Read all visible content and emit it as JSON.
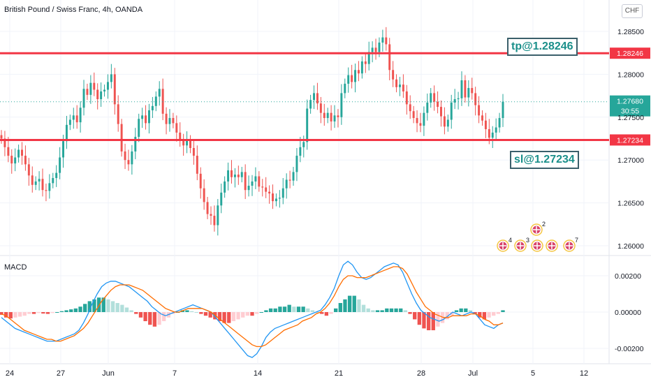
{
  "header": {
    "title": "British Pound / Swiss Franc, 4h, OANDA",
    "currency_button": "CHF"
  },
  "indicator": {
    "name": "MACD"
  },
  "annotations": {
    "tp_label": "tp@1.28246",
    "sl_label": "sl@1.27234"
  },
  "price_tags": {
    "tp": "1.28246",
    "sl": "1.27234",
    "last_price": "1.27680",
    "countdown": "30:55"
  },
  "event_markers": [
    {
      "label": "4"
    },
    {
      "label": "3"
    },
    {
      "label": "2"
    },
    {
      "label": ""
    },
    {
      "label": ""
    },
    {
      "label": "7"
    }
  ],
  "colors": {
    "up": "#26a69a",
    "down": "#ef5350",
    "level_line": "#f23645",
    "macd_line": "#2196f3",
    "signal_line": "#ff6d00",
    "hist_up_strong": "#26a69a",
    "hist_up_weak": "#b2dfdb",
    "hist_down_strong": "#ef5350",
    "hist_down_weak": "#ffcdd2",
    "note_text": "#1a8f8a",
    "note_border": "#3b5f6b"
  },
  "chart_data": [
    {
      "type": "candlestick",
      "title": "British Pound / Swiss Franc, 4h, OANDA",
      "x_ticks": [
        "24",
        "27",
        "Jun",
        "7",
        "14",
        "21",
        "28",
        "Jul",
        "5",
        "12"
      ],
      "y_ticks": [
        "1.28500",
        "1.28000",
        "1.27500",
        "1.27000",
        "1.26500",
        "1.26000"
      ],
      "ylim": [
        1.2587,
        1.2871
      ],
      "levels": [
        {
          "name": "tp",
          "value": 1.28246
        },
        {
          "name": "sl",
          "value": 1.27234
        }
      ],
      "last_price": 1.2768,
      "closes": [
        1.2725,
        1.2715,
        1.2705,
        1.2696,
        1.2703,
        1.2712,
        1.2705,
        1.2695,
        1.2682,
        1.2671,
        1.2675,
        1.2678,
        1.2665,
        1.2664,
        1.2673,
        1.2679,
        1.2685,
        1.2703,
        1.2722,
        1.2741,
        1.2747,
        1.2752,
        1.2744,
        1.2761,
        1.2783,
        1.2776,
        1.279,
        1.2782,
        1.2771,
        1.278,
        1.2782,
        1.2791,
        1.28,
        1.2765,
        1.2742,
        1.271,
        1.27,
        1.2695,
        1.271,
        1.2727,
        1.2748,
        1.2752,
        1.2743,
        1.2758,
        1.2763,
        1.2774,
        1.2783,
        1.2754,
        1.2742,
        1.2749,
        1.2743,
        1.2732,
        1.2723,
        1.2717,
        1.2723,
        1.2714,
        1.2705,
        1.2684,
        1.2667,
        1.2651,
        1.2637,
        1.2635,
        1.2624,
        1.2647,
        1.2662,
        1.2675,
        1.2688,
        1.268,
        1.2683,
        1.268,
        1.2686,
        1.2665,
        1.267,
        1.2675,
        1.2681,
        1.2669,
        1.2668,
        1.2663,
        1.2661,
        1.2652,
        1.2655,
        1.2656,
        1.2667,
        1.2677,
        1.2676,
        1.2686,
        1.2705,
        1.2715,
        1.2721,
        1.276,
        1.277,
        1.2778,
        1.2766,
        1.2755,
        1.2749,
        1.2755,
        1.2745,
        1.2752,
        1.275,
        1.2778,
        1.2789,
        1.2799,
        1.2791,
        1.2805,
        1.2801,
        1.2815,
        1.2812,
        1.2826,
        1.2831,
        1.2826,
        1.2837,
        1.2843,
        1.2835,
        1.2805,
        1.2794,
        1.2785,
        1.2788,
        1.278,
        1.2765,
        1.2757,
        1.2749,
        1.2743,
        1.274,
        1.2755,
        1.2767,
        1.2778,
        1.2768,
        1.2762,
        1.2751,
        1.2739,
        1.2747,
        1.2767,
        1.2771,
        1.2772,
        1.2793,
        1.2773,
        1.2784,
        1.2778,
        1.2764,
        1.2752,
        1.2746,
        1.2736,
        1.2726,
        1.2732,
        1.2738,
        1.2749,
        1.2768
      ]
    },
    {
      "type": "line+bar",
      "title": "MACD",
      "y_ticks": [
        "0.00200",
        "0.00000",
        "-0.00200"
      ],
      "ylim": [
        -0.0029,
        0.0031
      ],
      "series": [
        {
          "name": "",
          "kind": "line",
          "color": "#2196f3",
          "values": [
            -0.0003,
            -0.0005,
            -0.0007,
            -0.0009,
            -0.001,
            -0.0011,
            -0.0012,
            -0.0013,
            -0.0014,
            -0.0015,
            -0.0016,
            -0.0016,
            -0.0016,
            -0.0015,
            -0.0014,
            -0.0013,
            -0.0012,
            -0.001,
            -0.0006,
            -0.0001,
            0.0005,
            0.001,
            0.0014,
            0.0016,
            0.0017,
            0.0017,
            0.0016,
            0.0015,
            0.0014,
            0.0012,
            0.001,
            0.0008,
            0.0006,
            0.0003,
            0.0001,
            -0.0001,
            -0.0002,
            -0.0001,
            0.0,
            0.0001,
            0.0002,
            0.0003,
            0.0004,
            0.0003,
            0.0002,
            0.0001,
            0.0,
            -0.0003,
            -0.0006,
            -0.0009,
            -0.0012,
            -0.0015,
            -0.0018,
            -0.0021,
            -0.0024,
            -0.0025,
            -0.0023,
            -0.0019,
            -0.0014,
            -0.0011,
            -0.0009,
            -0.0008,
            -0.0007,
            -0.0006,
            -0.0005,
            -0.0004,
            -0.0003,
            -0.0002,
            -0.0001,
            0.0,
            0.0001,
            0.0004,
            0.0008,
            0.0013,
            0.002,
            0.0026,
            0.0028,
            0.0026,
            0.0022,
            0.0019,
            0.0018,
            0.0019,
            0.0021,
            0.0023,
            0.0025,
            0.0026,
            0.0027,
            0.0026,
            0.0022,
            0.0016,
            0.001,
            0.0005,
            0.0001,
            -0.0001,
            -0.0003,
            -0.0004,
            -0.0005,
            -0.0004,
            -0.0002,
            0.0,
            -0.0001,
            -0.0002,
            -0.0001,
            0.0,
            -0.0001,
            -0.0004,
            -0.0007,
            -0.0008,
            -0.0009,
            -0.0007,
            -0.0006
          ]
        },
        {
          "name": "",
          "kind": "line",
          "color": "#ff6d00",
          "values": [
            -0.0001,
            -0.0002,
            -0.0004,
            -0.0006,
            -0.0008,
            -0.001,
            -0.0011,
            -0.0012,
            -0.0013,
            -0.0014,
            -0.0015,
            -0.0015,
            -0.0016,
            -0.0016,
            -0.0015,
            -0.0014,
            -0.0013,
            -0.0011,
            -0.0009,
            -0.0006,
            -0.0002,
            0.0002,
            0.0006,
            0.0009,
            0.0012,
            0.0014,
            0.0015,
            0.0015,
            0.0015,
            0.0014,
            0.0013,
            0.0012,
            0.001,
            0.0008,
            0.0006,
            0.0004,
            0.0002,
            0.0001,
            0.0,
            0.0,
            0.0001,
            0.0002,
            0.0002,
            0.0002,
            0.0002,
            0.0001,
            0.0,
            -0.0002,
            -0.0004,
            -0.0006,
            -0.0008,
            -0.001,
            -0.0012,
            -0.0014,
            -0.0016,
            -0.0018,
            -0.0019,
            -0.0019,
            -0.0018,
            -0.0016,
            -0.0014,
            -0.0012,
            -0.001,
            -0.0009,
            -0.0008,
            -0.0007,
            -0.0005,
            -0.0004,
            -0.0003,
            -0.0001,
            0.0,
            0.0002,
            0.0005,
            0.0009,
            0.0014,
            0.0018,
            0.002,
            0.002,
            0.0019,
            0.0019,
            0.0019,
            0.002,
            0.0021,
            0.0022,
            0.0023,
            0.0024,
            0.0025,
            0.0025,
            0.0024,
            0.0021,
            0.0016,
            0.0011,
            0.0007,
            0.0003,
            0.0001,
            -0.0001,
            -0.0002,
            -0.0003,
            -0.0003,
            -0.0002,
            -0.0002,
            -0.0002,
            -0.0002,
            -0.0001,
            -0.0001,
            -0.0002,
            -0.0004,
            -0.0005,
            -0.0007,
            -0.0007,
            -0.0006
          ]
        },
        {
          "name": "",
          "kind": "histogram",
          "values": [
            -0.00015,
            -0.0003,
            -0.00035,
            -0.0003,
            -0.00025,
            -0.0002,
            -0.0001,
            -0.0001,
            -5e-05,
            -8e-05,
            -0.0001,
            -5e-05,
            0.0,
            5e-05,
            0.0001,
            0.00015,
            0.0002,
            0.0003,
            0.00045,
            0.0006,
            0.0007,
            0.0008,
            0.0008,
            0.0007,
            0.0006,
            0.0005,
            0.0004,
            0.00025,
            0.0001,
            -0.0001,
            -0.0003,
            -0.0005,
            -0.0007,
            -0.0008,
            -0.0007,
            -0.0005,
            -0.0003,
            -0.0001,
            0.0,
            0.0001,
            0.0001,
            5e-05,
            0.0,
            -0.0001,
            -0.0002,
            -0.0003,
            -0.0004,
            -0.0005,
            -0.0006,
            -0.0006,
            -0.0005,
            -0.0004,
            -0.0003,
            -0.0002,
            -0.0002,
            -0.0001,
            0.0,
            0.0001,
            0.0002,
            0.0002,
            0.0003,
            0.0003,
            0.0004,
            0.0003,
            0.0003,
            0.0003,
            0.0002,
            0.0001,
            0.0,
            -0.0001,
            -0.0002,
            -0.0001,
            0.0002,
            0.0005,
            0.0007,
            0.0009,
            0.0009,
            0.0007,
            0.0004,
            0.0002,
            0.0001,
            0.0001,
            0.0001,
            0.0002,
            0.0002,
            0.0002,
            0.0002,
            0.0001,
            -0.0001,
            -0.0004,
            -0.0007,
            -0.0009,
            -0.001,
            -0.001,
            -0.0008,
            -0.0006,
            -0.0004,
            -0.0002,
            0.0001,
            0.0002,
            0.0002,
            0.0001,
            -0.0001,
            -0.0003,
            -0.0004,
            -0.0003,
            -0.0002,
            -0.0001,
            0.0001
          ]
        }
      ]
    }
  ]
}
